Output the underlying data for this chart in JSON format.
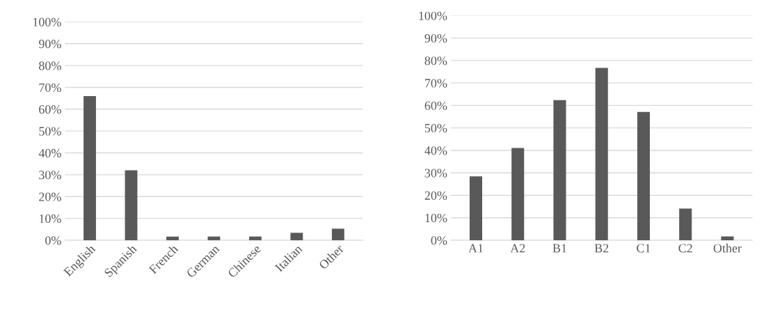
{
  "chart_data": [
    {
      "type": "bar",
      "categories": [
        "English",
        "Spanish",
        "French",
        "German",
        "Chinese",
        "Italian",
        "Other"
      ],
      "values": [
        66,
        32,
        1.7,
        1.7,
        1.7,
        3.4,
        5.3
      ],
      "color": "#595959",
      "ylim": [
        0,
        100
      ],
      "yticks": [
        {
          "value": 0,
          "label": "0%"
        },
        {
          "value": 10,
          "label": "10%"
        },
        {
          "value": 20,
          "label": "20%"
        },
        {
          "value": 30,
          "label": "30%"
        },
        {
          "value": 40,
          "label": "40%"
        },
        {
          "value": 50,
          "label": "50%"
        },
        {
          "value": 60,
          "label": "60%"
        },
        {
          "value": 70,
          "label": "70%"
        },
        {
          "value": 80,
          "label": "80%"
        },
        {
          "value": 90,
          "label": "90%"
        },
        {
          "value": 100,
          "label": "100%"
        }
      ],
      "grid": "y"
    },
    {
      "type": "bar",
      "categories": [
        "A1",
        "A2",
        "B1",
        "B2",
        "C1",
        "C2",
        "Other"
      ],
      "values": [
        28.4,
        41.1,
        62.4,
        76.7,
        57.1,
        14.1,
        1.7
      ],
      "color": "#595959",
      "ylim": [
        0,
        100
      ],
      "yticks": [
        {
          "value": 0,
          "label": "0%"
        },
        {
          "value": 10,
          "label": "10%"
        },
        {
          "value": 20,
          "label": "20%"
        },
        {
          "value": 30,
          "label": "30%"
        },
        {
          "value": 40,
          "label": "40%"
        },
        {
          "value": 50,
          "label": "50%"
        },
        {
          "value": 60,
          "label": "60%"
        },
        {
          "value": 70,
          "label": "70%"
        },
        {
          "value": 80,
          "label": "80%"
        },
        {
          "value": 90,
          "label": "90%"
        },
        {
          "value": 100,
          "label": "100%"
        }
      ],
      "grid": "y"
    }
  ]
}
